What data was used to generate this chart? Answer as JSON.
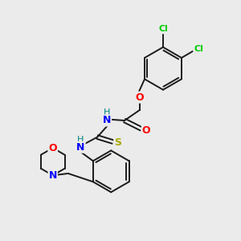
{
  "background_color": "#ebebeb",
  "bond_color": "#1a1a1a",
  "atom_colors": {
    "Cl": "#00cc00",
    "O": "#ff0000",
    "N": "#0000ff",
    "H": "#008080",
    "S": "#aaaa00",
    "C": "#1a1a1a"
  },
  "figsize": [
    3.0,
    3.0
  ],
  "dpi": 100
}
